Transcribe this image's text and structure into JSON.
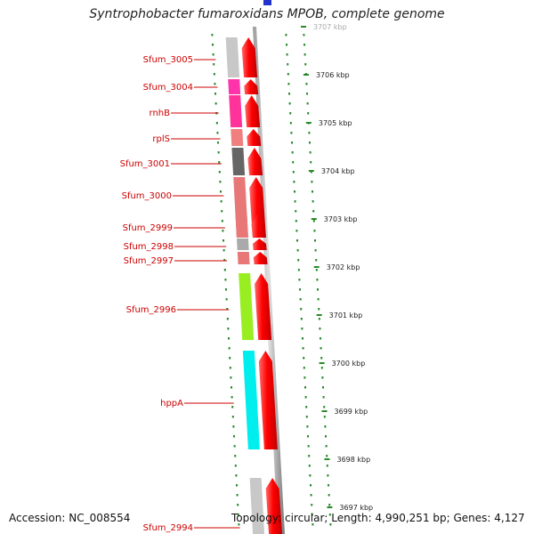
{
  "title": "Syntrophobacter fumaroxidans MPOB, complete genome",
  "accession": "Accession: NC_008554",
  "topology": "Topology: circular; Length: 4,990,251 bp; Genes: 4,127",
  "scale_ticks": [
    {
      "label": "3707 kbp",
      "faint": true
    },
    {
      "label": "3706 kbp"
    },
    {
      "label": "3705 kbp"
    },
    {
      "label": "3704 kbp"
    },
    {
      "label": "3703 kbp"
    },
    {
      "label": "3702 kbp"
    },
    {
      "label": "3701 kbp"
    },
    {
      "label": "3700 kbp"
    },
    {
      "label": "3699 kbp"
    },
    {
      "label": "3698 kbp"
    },
    {
      "label": "3697 kbp"
    }
  ],
  "genes": [
    {
      "label": "Sfum_3005",
      "color": "#c8c8c8"
    },
    {
      "label": "Sfum_3004",
      "color": "#ff33aa"
    },
    {
      "label": "rnhB",
      "color": "#ff3399"
    },
    {
      "label": "rplS",
      "color": "#f08080"
    },
    {
      "label": "Sfum_3001",
      "color": "#666666"
    },
    {
      "label": "Sfum_3000",
      "color": "#e87878"
    },
    {
      "label": "Sfum_2999",
      "color": "#e87878"
    },
    {
      "label": "Sfum_2998",
      "color": "#aaaaaa"
    },
    {
      "label": "Sfum_2997",
      "color": "#e87878"
    },
    {
      "label": "Sfum_2996",
      "color": "#99ee22"
    },
    {
      "label": "hppA",
      "color": "#00eeee"
    },
    {
      "label": "Sfum_2994",
      "color": "#c8c8c8"
    }
  ],
  "colors": {
    "gene_label": "#cc0000",
    "arrow": "#ff0000",
    "tick": "#2a8a2a",
    "backbone": "#888888",
    "marker": "#2233cc"
  }
}
